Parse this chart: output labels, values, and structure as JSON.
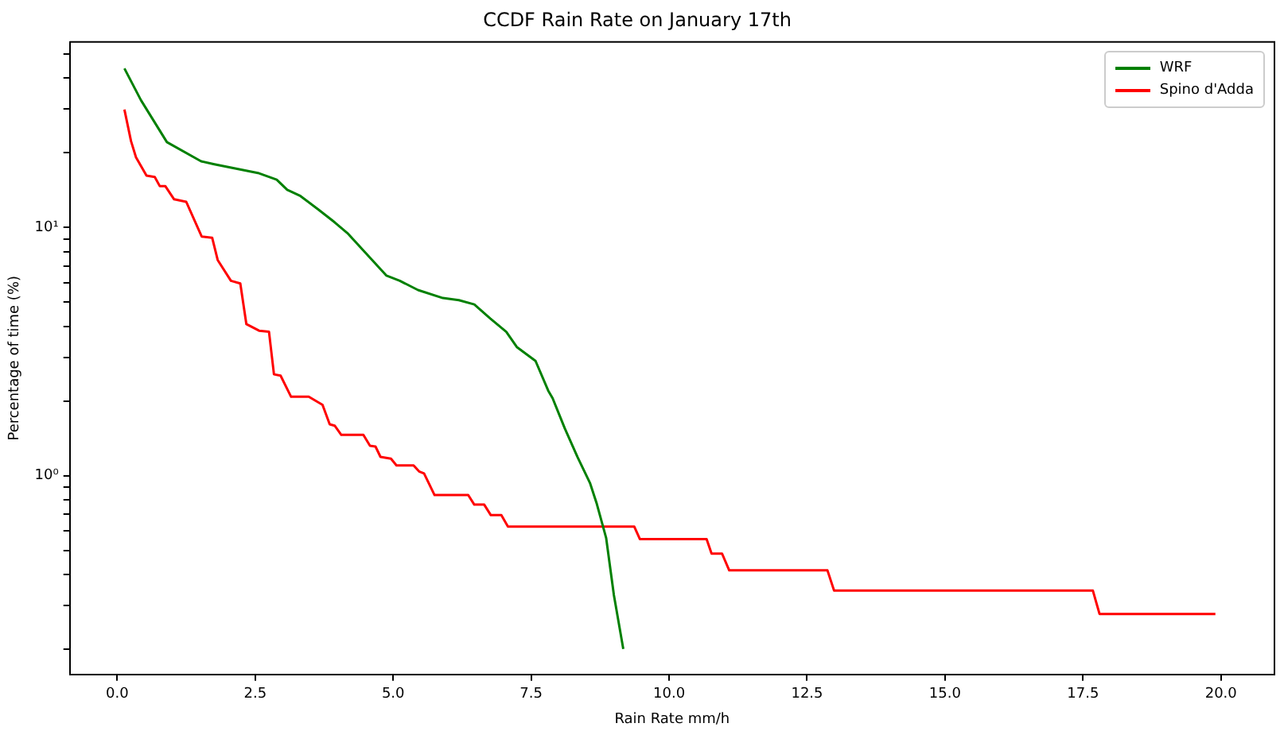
{
  "chart_data": {
    "type": "line",
    "title": "CCDF Rain Rate on January 17th",
    "xlabel": "Rain Rate mm/h",
    "ylabel": "Percentage of time (%)",
    "log": "y",
    "grid": false,
    "legend": "top right",
    "marker": "none",
    "line_style": "solid",
    "xlim": [
      -0.86,
      20.97
    ],
    "ylim": [
      0.158,
      56
    ],
    "xticks": [
      {
        "value": 0,
        "label": "0.0"
      },
      {
        "value": 2.5,
        "label": "2.5"
      },
      {
        "value": 5,
        "label": "5.0"
      },
      {
        "value": 7.5,
        "label": "7.5"
      },
      {
        "value": 10,
        "label": "10.0"
      },
      {
        "value": 12.5,
        "label": "12.5"
      },
      {
        "value": 15,
        "label": "15.0"
      },
      {
        "value": 17.5,
        "label": "17.5"
      },
      {
        "value": 20,
        "label": "20.0"
      }
    ],
    "yticks": [
      {
        "value": 0.2,
        "label": null
      },
      {
        "value": 0.3,
        "label": null
      },
      {
        "value": 0.4,
        "label": null
      },
      {
        "value": 0.5,
        "label": null
      },
      {
        "value": 0.6,
        "label": null
      },
      {
        "value": 0.7,
        "label": null
      },
      {
        "value": 0.8,
        "label": null
      },
      {
        "value": 0.9,
        "label": null
      },
      {
        "value": 1,
        "label": "10⁰"
      },
      {
        "value": 2,
        "label": null
      },
      {
        "value": 3,
        "label": null
      },
      {
        "value": 4,
        "label": null
      },
      {
        "value": 5,
        "label": null
      },
      {
        "value": 6,
        "label": null
      },
      {
        "value": 7,
        "label": null
      },
      {
        "value": 8,
        "label": null
      },
      {
        "value": 9,
        "label": null
      },
      {
        "value": 10,
        "label": "10¹"
      },
      {
        "value": 20,
        "label": null
      },
      {
        "value": 30,
        "label": null
      },
      {
        "value": 40,
        "label": null
      },
      {
        "value": 50,
        "label": null
      }
    ],
    "series": [
      {
        "name": "WRF",
        "color": "#008000",
        "x": [
          0.13,
          0.43,
          0.9,
          1.52,
          1.76,
          2.55,
          2.89,
          3.08,
          3.32,
          3.65,
          3.94,
          4.17,
          4.5,
          4.88,
          5.12,
          5.45,
          5.9,
          6.19,
          6.47,
          6.76,
          7.05,
          7.24,
          7.58,
          7.81,
          7.89,
          8.11,
          8.34,
          8.57,
          8.69,
          8.86,
          9.0,
          9.17
        ],
        "values": [
          43.8,
          32.6,
          22.1,
          18.5,
          18.0,
          16.6,
          15.6,
          14.2,
          13.4,
          11.8,
          10.5,
          9.5,
          7.9,
          6.4,
          6.1,
          5.6,
          5.2,
          5.1,
          4.9,
          4.3,
          3.8,
          3.3,
          2.9,
          2.2,
          2.05,
          1.55,
          1.19,
          0.93,
          0.77,
          0.56,
          0.33,
          0.2
        ]
      },
      {
        "name": "Spino d'Adda",
        "color": "#ff0000",
        "x": [
          0.13,
          0.25,
          0.34,
          0.53,
          0.68,
          0.77,
          0.87,
          1.03,
          1.25,
          1.53,
          1.72,
          1.82,
          2.06,
          2.23,
          2.34,
          2.57,
          2.75,
          2.84,
          2.96,
          3.15,
          3.47,
          3.72,
          3.85,
          3.94,
          4.06,
          4.46,
          4.58,
          4.68,
          4.77,
          4.96,
          5.06,
          5.37,
          5.47,
          5.56,
          5.75,
          6.36,
          6.47,
          6.65,
          6.77,
          6.96,
          7.08,
          9.37,
          9.47,
          10.68,
          10.77,
          10.96,
          11.09,
          12.87,
          12.99,
          17.68,
          17.8,
          19.9
        ],
        "values": [
          29.9,
          22.3,
          19.2,
          16.2,
          16.0,
          14.7,
          14.7,
          13.0,
          12.7,
          9.2,
          9.1,
          7.4,
          6.1,
          5.95,
          4.08,
          3.84,
          3.8,
          2.56,
          2.53,
          2.08,
          2.08,
          1.93,
          1.61,
          1.59,
          1.46,
          1.46,
          1.32,
          1.31,
          1.19,
          1.17,
          1.1,
          1.1,
          1.04,
          1.02,
          0.835,
          0.835,
          0.764,
          0.764,
          0.693,
          0.693,
          0.623,
          0.623,
          0.555,
          0.555,
          0.485,
          0.485,
          0.415,
          0.415,
          0.344,
          0.344,
          0.277,
          0.277
        ]
      }
    ]
  }
}
